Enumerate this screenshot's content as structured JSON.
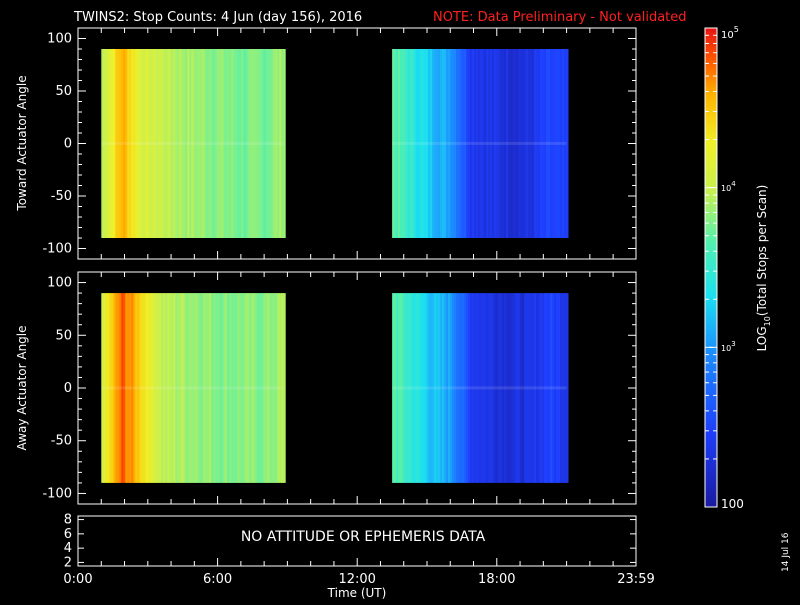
{
  "header": {
    "title": "TWINS2: Stop Counts:  4 Jun (day 156), 2016",
    "note": "NOTE: Data Preliminary - Not validated",
    "note_color": "#ff2020"
  },
  "datestamp": "14 Jul 16",
  "chart_data": [
    {
      "type": "heatmap",
      "panel": "top",
      "ylabel": "Toward Actuator Angle",
      "ylim": [
        -110,
        110
      ],
      "yticks": [
        "100",
        "50",
        "0",
        "-50",
        "-100"
      ],
      "angle_range": [
        -90,
        90
      ],
      "segments": [
        {
          "x_start": "01:00",
          "x_end": "08:50",
          "mean_log10": [
            3.95,
            4.6,
            4.1,
            4.0,
            3.9,
            3.85,
            3.8,
            3.75,
            3.75,
            3.9
          ]
        },
        {
          "x_start": "13:30",
          "x_end": "21:00",
          "mean_log10": [
            3.7,
            3.45,
            3.2,
            3.05,
            2.45,
            2.35,
            2.3,
            2.3,
            2.5,
            2.4
          ]
        }
      ]
    },
    {
      "type": "heatmap",
      "panel": "bottom",
      "ylabel": "Away Actuator Angle",
      "ylim": [
        -110,
        110
      ],
      "yticks": [
        "100",
        "50",
        "0",
        "-50",
        "-100"
      ],
      "angle_range": [
        -90,
        90
      ],
      "segments": [
        {
          "x_start": "01:00",
          "x_end": "08:50",
          "mean_log10": [
            4.1,
            4.8,
            4.4,
            3.95,
            3.9,
            3.85,
            3.8,
            3.8,
            3.8,
            3.9
          ]
        },
        {
          "x_start": "13:30",
          "x_end": "21:00",
          "mean_log10": [
            3.7,
            3.45,
            3.2,
            3.05,
            2.45,
            2.35,
            2.3,
            2.3,
            2.5,
            2.4
          ]
        }
      ]
    },
    {
      "type": "line",
      "panel": "attitude",
      "yticks": [
        "8",
        "6",
        "4",
        "2"
      ],
      "ylim": [
        1.5,
        8.5
      ],
      "message": "NO ATTITUDE OR EPHEMERIS DATA"
    }
  ],
  "xaxis": {
    "label": "Time (UT)",
    "ticks": [
      "0:00",
      "6:00",
      "12:00",
      "18:00",
      "23:59"
    ]
  },
  "colorbar": {
    "label": "LOG",
    "label_sub": "10",
    "label_tail": "(Total Stops per Scan)",
    "top_base": "10",
    "top_exp": "5",
    "mid_base": "10",
    "mid_exp": "4",
    "low_base": "10",
    "low_exp": "3",
    "bottom": "100",
    "log_range": [
      2,
      5
    ]
  }
}
